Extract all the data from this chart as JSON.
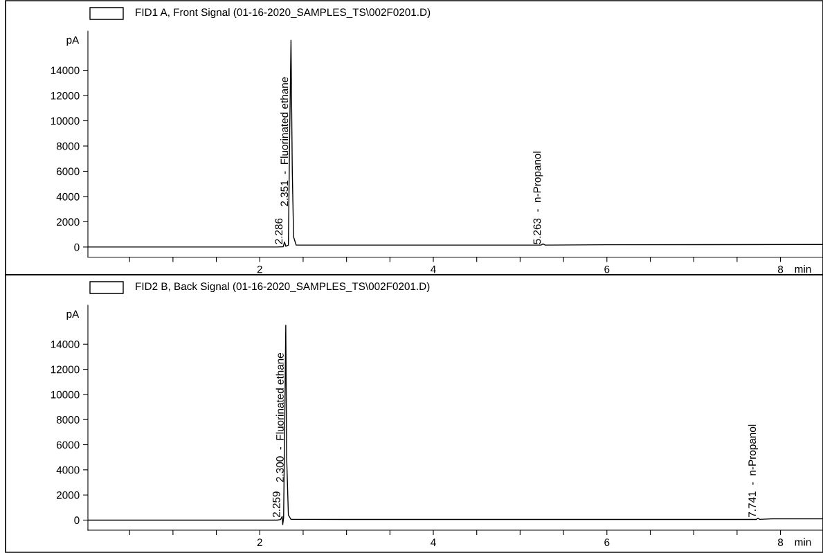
{
  "chart_data": [
    {
      "type": "line",
      "title": "FID1 A, Front Signal (01-16-2020_SAMPLES_TS\\002F0201.D)",
      "xlabel": "min",
      "ylabel": "pA",
      "series": [
        {
          "color": "#000000",
          "x": [
            0.02,
            1.0,
            2.2,
            2.27,
            2.286,
            2.3,
            2.33,
            2.345,
            2.36,
            2.375,
            2.39,
            2.42,
            3.0,
            5.24,
            5.263,
            5.29,
            6.0,
            8.49
          ],
          "values": [
            0,
            0,
            0,
            20,
            400,
            60,
            150,
            9000,
            16380,
            6000,
            800,
            150,
            150,
            150,
            250,
            150,
            180,
            200
          ]
        }
      ],
      "xlim": [
        0.02,
        8.49
      ],
      "xticks": [
        {
          "value": 0.5,
          "label": null
        },
        {
          "value": 1,
          "label": null
        },
        {
          "value": 1.5,
          "label": null
        },
        2,
        {
          "value": 2.5,
          "label": null
        },
        {
          "value": 3,
          "label": null
        },
        {
          "value": 3.5,
          "label": null
        },
        4,
        {
          "value": 4.5,
          "label": null
        },
        {
          "value": 5,
          "label": null
        },
        {
          "value": 5.5,
          "label": null
        },
        6,
        {
          "value": 6.5,
          "label": null
        },
        {
          "value": 7,
          "label": null
        },
        {
          "value": 7.5,
          "label": null
        },
        8
      ],
      "ylim": [
        -800,
        17100
      ],
      "yticks": [
        0,
        2000,
        4000,
        6000,
        8000,
        10000,
        12000,
        14000
      ],
      "annotations": [
        {
          "text": "2.286",
          "x": 2.286,
          "y": 200
        },
        {
          "text": "2.351  -  Fluorinated ethane",
          "x": 2.351,
          "y": 3200
        },
        {
          "text": "5.263  -  n-Propanol",
          "x": 5.263,
          "y": 200
        }
      ],
      "grid": false,
      "legend": false,
      "line_style": "solid",
      "marker": "none"
    },
    {
      "type": "line",
      "title": "FID2 B, Back Signal (01-16-2020_SAMPLES_TS\\002F0201.D)",
      "xlabel": "min",
      "ylabel": "pA",
      "series": [
        {
          "color": "#000000",
          "x": [
            0.02,
            1.0,
            2.2,
            2.24,
            2.259,
            2.265,
            2.275,
            2.29,
            2.3,
            2.31,
            2.33,
            2.36,
            3.0,
            7.72,
            7.741,
            7.76,
            7.9,
            8.49
          ],
          "values": [
            0,
            0,
            0,
            50,
            300,
            -360,
            200,
            9000,
            15500,
            5000,
            400,
            60,
            50,
            50,
            150,
            60,
            100,
            100
          ]
        }
      ],
      "xlim": [
        0.02,
        8.49
      ],
      "xticks": [
        {
          "value": 0.5,
          "label": null
        },
        {
          "value": 1,
          "label": null
        },
        {
          "value": 1.5,
          "label": null
        },
        2,
        {
          "value": 2.5,
          "label": null
        },
        {
          "value": 3,
          "label": null
        },
        {
          "value": 3.5,
          "label": null
        },
        4,
        {
          "value": 4.5,
          "label": null
        },
        {
          "value": 5,
          "label": null
        },
        {
          "value": 5.5,
          "label": null
        },
        6,
        {
          "value": 6.5,
          "label": null
        },
        {
          "value": 7,
          "label": null
        },
        {
          "value": 7.5,
          "label": null
        },
        8
      ],
      "ylim": [
        -800,
        17100
      ],
      "yticks": [
        0,
        2000,
        4000,
        6000,
        8000,
        10000,
        12000,
        14000
      ],
      "annotations": [
        {
          "text": "2.259",
          "x": 2.259,
          "y": 200
        },
        {
          "text": "2.300  -  Fluorinated ethane",
          "x": 2.3,
          "y": 3000
        },
        {
          "text": "7.741  -  n-Propanol",
          "x": 7.741,
          "y": 200
        }
      ],
      "grid": false,
      "legend": false,
      "line_style": "solid",
      "marker": "none"
    }
  ]
}
